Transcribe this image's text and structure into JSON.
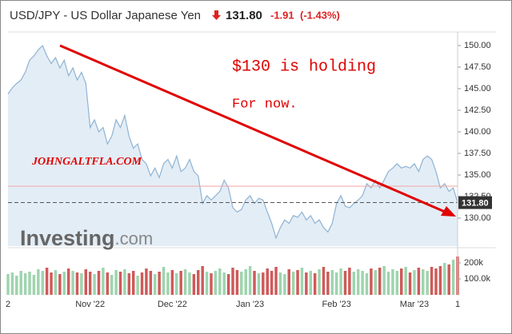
{
  "header": {
    "title": "USD/JPY - US Dollar Japanese Yen",
    "price": "131.80",
    "change": "-1.91",
    "change_pct": "(-1.43%)"
  },
  "chart_data": {
    "type": "line",
    "color": "#8fb3d3",
    "fill_color": "#e3edf6",
    "categories": [
      "2",
      null,
      null,
      null,
      null,
      null,
      null,
      null,
      null,
      null,
      null,
      null,
      null,
      null,
      null,
      null,
      null,
      null,
      null,
      "Nov '22",
      null,
      null,
      null,
      null,
      null,
      null,
      null,
      null,
      null,
      null,
      null,
      null,
      null,
      null,
      null,
      null,
      null,
      null,
      "Dec '22",
      null,
      null,
      null,
      null,
      null,
      null,
      null,
      null,
      null,
      null,
      null,
      null,
      null,
      null,
      null,
      null,
      null,
      "Jan '23",
      null,
      null,
      null,
      null,
      null,
      null,
      null,
      null,
      null,
      null,
      null,
      null,
      null,
      null,
      null,
      null,
      null,
      null,
      null,
      "Feb '23",
      null,
      null,
      null,
      null,
      null,
      null,
      null,
      null,
      null,
      null,
      null,
      null,
      null,
      null,
      null,
      null,
      null,
      "Mar '23",
      null,
      null,
      null,
      null,
      null,
      null,
      null,
      null,
      null,
      "1"
    ],
    "values": [
      144.4,
      145.1,
      145.6,
      146.0,
      146.9,
      148.3,
      148.8,
      149.5,
      150.0,
      148.8,
      147.9,
      148.6,
      147.4,
      148.3,
      146.5,
      147.4,
      146.0,
      146.9,
      145.6,
      140.5,
      141.4,
      140.0,
      140.5,
      138.6,
      139.5,
      141.4,
      140.5,
      141.9,
      139.5,
      138.1,
      138.6,
      136.8,
      136.3,
      134.9,
      135.8,
      134.7,
      136.3,
      136.8,
      135.8,
      137.2,
      135.4,
      135.8,
      136.8,
      135.4,
      134.9,
      131.7,
      132.6,
      132.1,
      132.6,
      133.1,
      134.4,
      133.5,
      131.2,
      130.7,
      131.0,
      132.1,
      132.6,
      131.7,
      132.3,
      132.1,
      130.7,
      129.4,
      127.7,
      128.9,
      129.8,
      129.4,
      130.3,
      130.1,
      130.7,
      129.8,
      130.3,
      129.4,
      129.8,
      128.9,
      128.4,
      129.4,
      131.7,
      132.6,
      131.4,
      131.2,
      131.7,
      132.1,
      132.6,
      134.0,
      133.5,
      134.4,
      133.5,
      134.4,
      135.4,
      135.8,
      136.3,
      135.8,
      136.0,
      135.8,
      136.3,
      135.4,
      136.8,
      137.2,
      136.8,
      135.4,
      133.5,
      134.0,
      133.1,
      133.5,
      131.8
    ],
    "ylim": [
      126.76,
      151.57
    ],
    "yticks": [
      {
        "value": 130,
        "label": "130.00"
      },
      {
        "value": 132.5,
        "label": "132.50"
      },
      {
        "value": 135,
        "label": "135.00"
      },
      {
        "value": 137.5,
        "label": "137.50"
      },
      {
        "value": 140,
        "label": "140.00"
      },
      {
        "value": 142.5,
        "label": "142.50"
      },
      {
        "value": 145,
        "label": "145.00"
      },
      {
        "value": 147.5,
        "label": "147.50"
      },
      {
        "value": 150,
        "label": "150.00"
      }
    ],
    "reference_line": {
      "value": 133.7,
      "color": "#f2a6a6"
    },
    "price_marker": {
      "value": 131.8,
      "label": "131.80"
    },
    "volume": {
      "up_color": "#9fd4ae",
      "down_color": "#cf5a5a",
      "values": [
        130000,
        140000,
        120000,
        150000,
        135000,
        145000,
        125000,
        160000,
        150000,
        170000,
        140000,
        155000,
        130000,
        145000,
        165000,
        150000,
        140000,
        135000,
        160000,
        145000,
        130000,
        150000,
        170000,
        140000,
        125000,
        155000,
        145000,
        160000,
        135000,
        150000,
        120000,
        140000,
        165000,
        150000,
        130000,
        145000,
        175000,
        140000,
        155000,
        135000,
        150000,
        160000,
        140000,
        130000,
        155000,
        180000,
        145000,
        135000,
        150000,
        165000,
        140000,
        130000,
        170000,
        155000,
        145000,
        160000,
        180000,
        150000,
        135000,
        140000,
        165000,
        150000,
        175000,
        140000,
        130000,
        160000,
        145000,
        155000,
        170000,
        140000,
        150000,
        135000,
        160000,
        175000,
        145000,
        155000,
        140000,
        165000,
        150000,
        170000,
        145000,
        160000,
        150000,
        135000,
        165000,
        155000,
        170000,
        180000,
        145000,
        160000,
        150000,
        165000,
        175000,
        140000,
        155000,
        170000,
        160000,
        150000,
        175000,
        165000,
        180000,
        200000,
        190000,
        220000,
        240000
      ],
      "ylim": [
        0,
        255000
      ],
      "yticks": [
        {
          "value": 100000,
          "label": "100.0k"
        },
        {
          "value": 200000,
          "label": "200k"
        }
      ]
    },
    "annotations": [
      "$130 is holding",
      "For now.",
      "JOHNGALTFLA.COM"
    ],
    "watermark": [
      "Investing",
      ".com"
    ]
  }
}
